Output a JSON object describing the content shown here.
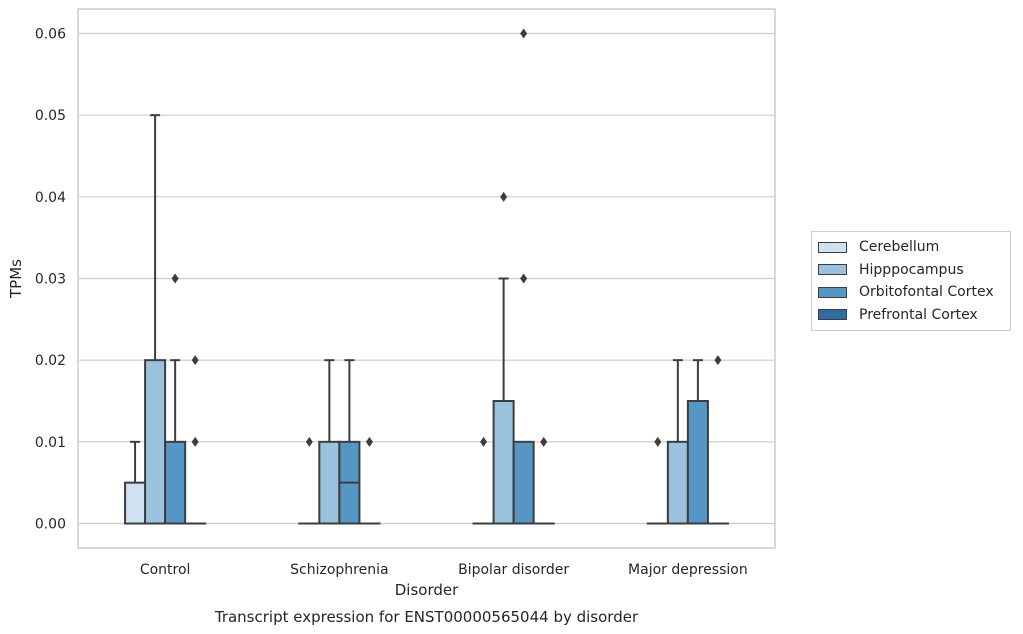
{
  "chart_data": {
    "type": "box",
    "title": "",
    "caption": "Transcript expression for ENST00000565044 by disorder",
    "xlabel": "Disorder",
    "ylabel": "TPMs",
    "ylim": [
      -0.003,
      0.063
    ],
    "yticks": [
      0.0,
      0.01,
      0.02,
      0.03,
      0.04,
      0.05,
      0.06
    ],
    "ytick_labels": [
      "0.00",
      "0.01",
      "0.02",
      "0.03",
      "0.04",
      "0.05",
      "0.06"
    ],
    "grid": true,
    "legend_position": "right",
    "categories": [
      "Control",
      "Schizophrenia",
      "Bipolar disorder",
      "Major depression"
    ],
    "series": [
      {
        "name": "Cerebellum",
        "color": "#d0e1f2",
        "boxes": [
          {
            "q1": 0.0,
            "median": 0.0,
            "q3": 0.005,
            "whisker_low": 0.0,
            "whisker_high": 0.01,
            "outliers": []
          },
          {
            "q1": 0.0,
            "median": 0.0,
            "q3": 0.0,
            "whisker_low": 0.0,
            "whisker_high": 0.0,
            "outliers": [
              0.01
            ]
          },
          {
            "q1": 0.0,
            "median": 0.0,
            "q3": 0.0,
            "whisker_low": 0.0,
            "whisker_high": 0.0,
            "outliers": [
              0.01
            ]
          },
          {
            "q1": 0.0,
            "median": 0.0,
            "q3": 0.0,
            "whisker_low": 0.0,
            "whisker_high": 0.0,
            "outliers": [
              0.01
            ]
          }
        ]
      },
      {
        "name": "Hipppocampus",
        "color": "#9ac2dc",
        "boxes": [
          {
            "q1": 0.0,
            "median": 0.0,
            "q3": 0.02,
            "whisker_low": 0.0,
            "whisker_high": 0.05,
            "outliers": []
          },
          {
            "q1": 0.0,
            "median": 0.0,
            "q3": 0.01,
            "whisker_low": 0.0,
            "whisker_high": 0.02,
            "outliers": []
          },
          {
            "q1": 0.0,
            "median": 0.0,
            "q3": 0.015,
            "whisker_low": 0.0,
            "whisker_high": 0.03,
            "outliers": [
              0.04
            ]
          },
          {
            "q1": 0.0,
            "median": 0.0,
            "q3": 0.01,
            "whisker_low": 0.0,
            "whisker_high": 0.02,
            "outliers": []
          }
        ]
      },
      {
        "name": "Orbitofontal Cortex",
        "color": "#5596c4",
        "boxes": [
          {
            "q1": 0.0,
            "median": 0.0,
            "q3": 0.01,
            "whisker_low": 0.0,
            "whisker_high": 0.02,
            "outliers": [
              0.03
            ]
          },
          {
            "q1": 0.0,
            "median": 0.005,
            "q3": 0.01,
            "whisker_low": 0.0,
            "whisker_high": 0.02,
            "outliers": []
          },
          {
            "q1": 0.0,
            "median": 0.0,
            "q3": 0.01,
            "whisker_low": 0.0,
            "whisker_high": 0.01,
            "outliers": [
              0.03,
              0.06
            ]
          },
          {
            "q1": 0.0,
            "median": 0.0,
            "q3": 0.015,
            "whisker_low": 0.0,
            "whisker_high": 0.02,
            "outliers": []
          }
        ]
      },
      {
        "name": "Prefrontal Cortex",
        "color": "#2e6ca4",
        "boxes": [
          {
            "q1": 0.0,
            "median": 0.0,
            "q3": 0.0,
            "whisker_low": 0.0,
            "whisker_high": 0.0,
            "outliers": [
              0.01,
              0.02
            ]
          },
          {
            "q1": 0.0,
            "median": 0.0,
            "q3": 0.0,
            "whisker_low": 0.0,
            "whisker_high": 0.0,
            "outliers": [
              0.01
            ]
          },
          {
            "q1": 0.0,
            "median": 0.0,
            "q3": 0.0,
            "whisker_low": 0.0,
            "whisker_high": 0.0,
            "outliers": [
              0.01
            ]
          },
          {
            "q1": 0.0,
            "median": 0.0,
            "q3": 0.0,
            "whisker_low": 0.0,
            "whisker_high": 0.0,
            "outliers": [
              0.02
            ]
          }
        ]
      }
    ]
  }
}
